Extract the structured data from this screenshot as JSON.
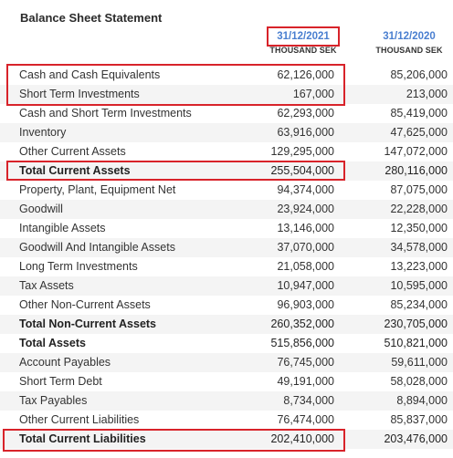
{
  "title": "Balance Sheet Statement",
  "columns": [
    {
      "date": "31/12/2021",
      "unit": "THOUSAND SEK"
    },
    {
      "date": "31/12/2020",
      "unit": "THOUSAND SEK"
    }
  ],
  "rows": [
    {
      "label": "Cash and Cash Equivalents",
      "v2021": "62,126,000",
      "v2020": "85,206,000",
      "bold": false
    },
    {
      "label": "Short Term Investments",
      "v2021": "167,000",
      "v2020": "213,000",
      "bold": false
    },
    {
      "label": "Cash and Short Term Investments",
      "v2021": "62,293,000",
      "v2020": "85,419,000",
      "bold": false
    },
    {
      "label": "Inventory",
      "v2021": "63,916,000",
      "v2020": "47,625,000",
      "bold": false
    },
    {
      "label": "Other Current Assets",
      "v2021": "129,295,000",
      "v2020": "147,072,000",
      "bold": false
    },
    {
      "label": "Total Current Assets",
      "v2021": "255,504,000",
      "v2020": "280,116,000",
      "bold": true
    },
    {
      "label": "Property, Plant, Equipment Net",
      "v2021": "94,374,000",
      "v2020": "87,075,000",
      "bold": false
    },
    {
      "label": "Goodwill",
      "v2021": "23,924,000",
      "v2020": "22,228,000",
      "bold": false
    },
    {
      "label": "Intangible Assets",
      "v2021": "13,146,000",
      "v2020": "12,350,000",
      "bold": false
    },
    {
      "label": "Goodwill And Intangible Assets",
      "v2021": "37,070,000",
      "v2020": "34,578,000",
      "bold": false
    },
    {
      "label": "Long Term Investments",
      "v2021": "21,058,000",
      "v2020": "13,223,000",
      "bold": false
    },
    {
      "label": "Tax Assets",
      "v2021": "10,947,000",
      "v2020": "10,595,000",
      "bold": false
    },
    {
      "label": "Other Non-Current Assets",
      "v2021": "96,903,000",
      "v2020": "85,234,000",
      "bold": false
    },
    {
      "label": "Total Non-Current Assets",
      "v2021": "260,352,000",
      "v2020": "230,705,000",
      "bold": true
    },
    {
      "label": "Total Assets",
      "v2021": "515,856,000",
      "v2020": "510,821,000",
      "bold": true
    },
    {
      "label": "Account Payables",
      "v2021": "76,745,000",
      "v2020": "59,611,000",
      "bold": false
    },
    {
      "label": "Short Term Debt",
      "v2021": "49,191,000",
      "v2020": "58,028,000",
      "bold": false
    },
    {
      "label": "Tax Payables",
      "v2021": "8,734,000",
      "v2020": "8,894,000",
      "bold": false
    },
    {
      "label": "Other Current Liabilities",
      "v2021": "76,474,000",
      "v2020": "85,837,000",
      "bold": false
    },
    {
      "label": "Total Current Liabilities",
      "v2021": "202,410,000",
      "v2020": "203,476,000",
      "bold": true
    }
  ],
  "highlight_color": "#d8232a"
}
